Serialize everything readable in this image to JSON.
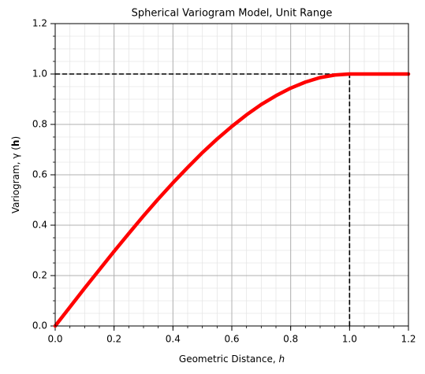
{
  "chart_data": {
    "type": "line",
    "title": "Spherical Variogram Model, Unit Range",
    "xlabel": [
      "Geometric Distance, ",
      "h"
    ],
    "ylabel": [
      "Variogram, γ (",
      "h",
      ")"
    ],
    "x": [
      0,
      0.05,
      0.1,
      0.15,
      0.2,
      0.25,
      0.3,
      0.35,
      0.4,
      0.45,
      0.5,
      0.55,
      0.6,
      0.65,
      0.7,
      0.75,
      0.8,
      0.85,
      0.9,
      0.95,
      1.0,
      1.2
    ],
    "values": [
      0,
      0.075,
      0.15,
      0.223,
      0.296,
      0.367,
      0.437,
      0.504,
      0.568,
      0.629,
      0.688,
      0.742,
      0.792,
      0.838,
      0.879,
      0.914,
      0.944,
      0.968,
      0.986,
      0.996,
      1,
      1
    ],
    "color": "#ff0000",
    "xlim": [
      0,
      1.2
    ],
    "ylim": [
      0,
      1.2
    ],
    "xticks": [
      {
        "value": 0,
        "label": "0.0"
      },
      0.2,
      0.4,
      0.6,
      0.8,
      {
        "value": 1,
        "label": "1.0"
      },
      1.2
    ],
    "yticks": [
      {
        "value": 0,
        "label": "0.0"
      },
      0.2,
      0.4,
      0.6,
      0.8,
      {
        "value": 1,
        "label": "1.0"
      },
      1.2
    ],
    "grid": true,
    "minor_grid_step": 0.05,
    "hline": 1,
    "vline": 1
  }
}
